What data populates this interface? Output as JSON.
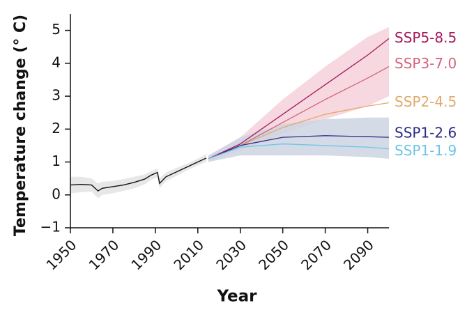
{
  "chart_data": {
    "type": "line",
    "x_label": "Year",
    "y_label": "Temperature change (° C)",
    "xlim": [
      1950,
      2100
    ],
    "xticks": [
      1950,
      1970,
      1990,
      2010,
      2030,
      2050,
      2070,
      2090
    ],
    "ylim": [
      -1,
      5.5
    ],
    "yticks": [
      {
        "value": -1,
        "label": "−1"
      },
      0,
      1,
      2,
      3,
      4,
      5
    ],
    "series": [
      {
        "color": "#111111",
        "band_color": "#e3e3e3",
        "x": [
          1950,
          1955,
          1960,
          1963,
          1965,
          1970,
          1975,
          1980,
          1985,
          1988,
          1991,
          1992,
          1995,
          2000,
          2005,
          2010,
          2014
        ],
        "values": [
          0.3,
          0.32,
          0.3,
          0.12,
          0.2,
          0.25,
          0.3,
          0.38,
          0.48,
          0.6,
          0.68,
          0.35,
          0.55,
          0.7,
          0.85,
          1.0,
          1.12
        ],
        "band_upper": [
          0.55,
          0.55,
          0.5,
          0.35,
          0.4,
          0.42,
          0.48,
          0.55,
          0.62,
          0.72,
          0.8,
          0.5,
          0.68,
          0.82,
          0.95,
          1.1,
          1.25
        ],
        "band_lower": [
          0.05,
          0.08,
          0.1,
          -0.1,
          0.0,
          0.05,
          0.12,
          0.2,
          0.32,
          0.45,
          0.55,
          0.2,
          0.42,
          0.58,
          0.75,
          0.9,
          1.0
        ]
      },
      {
        "name": "SSP5-8.5",
        "color": "#a3195b",
        "band_color": "#f6d0da",
        "x": [
          2015,
          2030,
          2050,
          2070,
          2090,
          2100
        ],
        "values": [
          1.1,
          1.55,
          2.45,
          3.35,
          4.25,
          4.75
        ],
        "band_upper": [
          1.2,
          1.75,
          2.9,
          3.9,
          4.8,
          5.1
        ],
        "band_lower": [
          1.0,
          1.35,
          1.85,
          2.3,
          2.7,
          3.0
        ]
      },
      {
        "name": "SSP3-7.0",
        "color": "#d6627a",
        "x": [
          2015,
          2030,
          2050,
          2070,
          2090,
          2100
        ],
        "values": [
          1.1,
          1.5,
          2.2,
          2.9,
          3.55,
          3.9
        ]
      },
      {
        "name": "SSP2-4.5",
        "color": "#e2a96b",
        "x": [
          2015,
          2030,
          2050,
          2070,
          2090,
          2100
        ],
        "values": [
          1.1,
          1.5,
          2.05,
          2.45,
          2.7,
          2.8
        ]
      },
      {
        "name": "SSP1-2.6",
        "color": "#2b2a86",
        "band_color": "#cdd5e2",
        "x": [
          2015,
          2030,
          2050,
          2070,
          2090,
          2100
        ],
        "values": [
          1.1,
          1.5,
          1.75,
          1.8,
          1.77,
          1.75
        ],
        "band_upper": [
          1.2,
          1.75,
          2.15,
          2.3,
          2.35,
          2.35
        ],
        "band_lower": [
          1.0,
          1.2,
          1.2,
          1.2,
          1.15,
          1.1
        ]
      },
      {
        "name": "SSP1-1.9",
        "color": "#6ec4e8",
        "x": [
          2015,
          2030,
          2050,
          2070,
          2090,
          2100
        ],
        "values": [
          1.1,
          1.45,
          1.55,
          1.5,
          1.45,
          1.4
        ]
      }
    ]
  }
}
